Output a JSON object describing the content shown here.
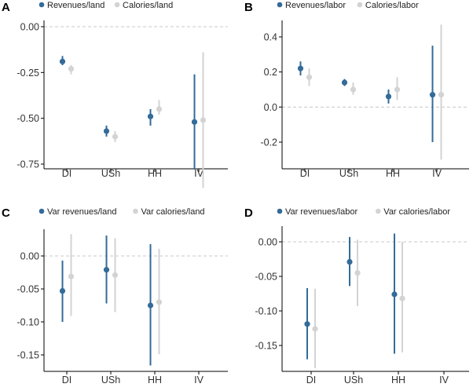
{
  "colors": {
    "series1": "#336b99",
    "series2": "#d3d3d3",
    "zero_line": "#c8c8c8",
    "axis": "#000000"
  },
  "chart_data": [
    {
      "panel": "A",
      "type": "scatter",
      "categories": [
        "DI",
        "USh",
        "HH",
        "IV"
      ],
      "legend": "top-left",
      "ylim": [
        -0.88,
        0.03
      ],
      "yticks": [
        0.0,
        -0.25,
        -0.5,
        -0.75
      ],
      "ytick_labels": [
        "0.00",
        "-0.25",
        "-0.50",
        "-0.75"
      ],
      "series": [
        {
          "name": "Revenues/land",
          "values": [
            -0.19,
            -0.57,
            -0.49,
            -0.52
          ],
          "low": [
            -0.21,
            -0.6,
            -0.54,
            -0.78
          ],
          "high": [
            -0.16,
            -0.54,
            -0.45,
            -0.26
          ]
        },
        {
          "name": "Calories/land",
          "values": [
            -0.23,
            -0.6,
            -0.45,
            -0.51
          ],
          "low": [
            -0.26,
            -0.63,
            -0.48,
            -0.88
          ],
          "high": [
            -0.21,
            -0.57,
            -0.4,
            -0.14
          ]
        }
      ]
    },
    {
      "panel": "B",
      "type": "scatter",
      "categories": [
        "DI",
        "USh",
        "HH",
        "IV"
      ],
      "legend": "top-left",
      "ylim": [
        -0.3,
        0.48
      ],
      "yticks": [
        0.4,
        0.2,
        0.0,
        -0.2
      ],
      "ytick_labels": [
        "0.4",
        "0.2",
        "0.0",
        "-0.2"
      ],
      "series": [
        {
          "name": "Revenues/labor",
          "values": [
            0.22,
            0.14,
            0.06,
            0.07
          ],
          "low": [
            0.18,
            0.12,
            0.02,
            -0.2
          ],
          "high": [
            0.26,
            0.16,
            0.1,
            0.35
          ]
        },
        {
          "name": "Calories/labor",
          "values": [
            0.17,
            0.1,
            0.1,
            0.07
          ],
          "low": [
            0.12,
            0.07,
            0.04,
            -0.3
          ],
          "high": [
            0.22,
            0.14,
            0.17,
            0.47
          ]
        }
      ]
    },
    {
      "panel": "C",
      "type": "scatter",
      "categories": [
        "DI",
        "USh",
        "HH",
        "IV"
      ],
      "legend": "top-left",
      "ylim": [
        -0.166,
        0.033
      ],
      "yticks": [
        0.0,
        -0.05,
        -0.1,
        -0.15
      ],
      "ytick_labels": [
        "0.00",
        "-0.05",
        "-0.10",
        "-0.15"
      ],
      "series": [
        {
          "name": "Var revenues/land",
          "values": [
            -0.053,
            -0.021,
            -0.075,
            null
          ],
          "low": [
            -0.1,
            -0.072,
            -0.166,
            null
          ],
          "high": [
            -0.007,
            0.031,
            0.018,
            null
          ]
        },
        {
          "name": "Var calories/land",
          "values": [
            -0.031,
            -0.029,
            -0.07,
            null
          ],
          "low": [
            -0.091,
            -0.085,
            -0.149,
            null
          ],
          "high": [
            0.033,
            0.027,
            0.011,
            null
          ]
        }
      ]
    },
    {
      "panel": "D",
      "type": "scatter",
      "categories": [
        "DI",
        "USh",
        "HH",
        "IV"
      ],
      "legend": "top-left",
      "ylim": [
        -0.183,
        0.012
      ],
      "yticks": [
        0.0,
        -0.05,
        -0.1,
        -0.15
      ],
      "ytick_labels": [
        "0.00",
        "-0.05",
        "-0.10",
        "-0.15"
      ],
      "series": [
        {
          "name": "Var revenues/labor",
          "values": [
            -0.119,
            -0.029,
            -0.076,
            null
          ],
          "low": [
            -0.17,
            -0.064,
            -0.162,
            null
          ],
          "high": [
            -0.067,
            0.007,
            0.012,
            null
          ]
        },
        {
          "name": "Var calories/labor",
          "values": [
            -0.126,
            -0.045,
            -0.082,
            null
          ],
          "low": [
            -0.183,
            -0.093,
            -0.16,
            null
          ],
          "high": [
            -0.068,
            0.003,
            0.0,
            null
          ]
        }
      ]
    }
  ]
}
